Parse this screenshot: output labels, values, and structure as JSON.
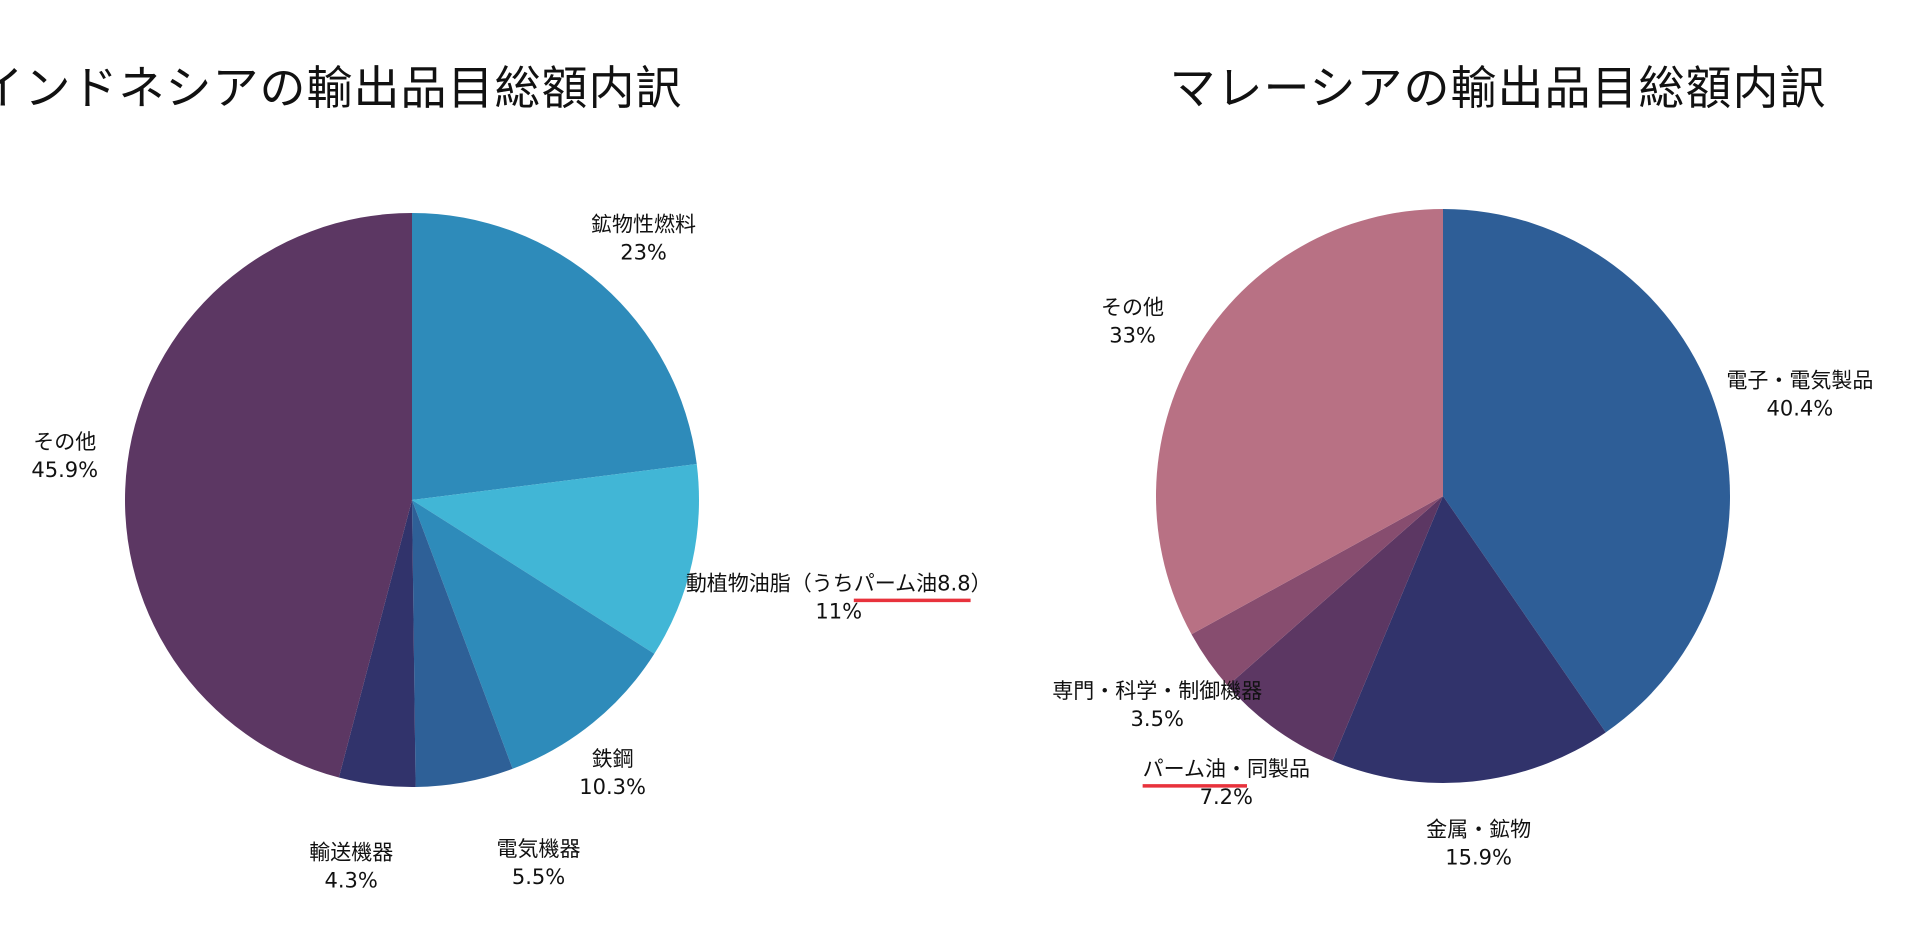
{
  "chart_data": [
    {
      "type": "pie",
      "title": "インドネシアの輸出品目総額内訳",
      "slices": [
        {
          "label": "鉱物性燃料",
          "value": 23,
          "value_text": "23%",
          "color": "#2e8bba"
        },
        {
          "label": "動植物油脂（うちパーム油8.8）",
          "value": 11,
          "value_text": "11%",
          "color": "#41b6d6"
        },
        {
          "label": "鉄鋼",
          "value": 10.3,
          "value_text": "10.3%",
          "color": "#2e8bba"
        },
        {
          "label": "電気機器",
          "value": 5.5,
          "value_text": "5.5%",
          "color": "#2e6097"
        },
        {
          "label": "輸送機器",
          "value": 4.3,
          "value_text": "4.3%",
          "color": "#31336b"
        },
        {
          "label": "その他",
          "value": 45.9,
          "value_text": "45.9%",
          "color": "#5c3763"
        }
      ],
      "start": "top",
      "direction": "clockwise",
      "highlight": {
        "text": "パーム油8.8",
        "color": "#e8323c"
      }
    },
    {
      "type": "pie",
      "title": "マレーシアの輸出品目総額内訳",
      "slices": [
        {
          "label": "電子・電気製品",
          "value": 40.4,
          "value_text": "40.4%",
          "color": "#2e5e97"
        },
        {
          "label": "金属・鉱物",
          "value": 15.9,
          "value_text": "15.9%",
          "color": "#31336b"
        },
        {
          "label": "パーム油・同製品",
          "value": 7.2,
          "value_text": "7.2%",
          "color": "#5c3763"
        },
        {
          "label": "専門・科学・制御機器",
          "value": 3.5,
          "value_text": "3.5%",
          "color": "#874d6f"
        },
        {
          "label": "その他",
          "value": 33,
          "value_text": "33%",
          "color": "#b87184"
        }
      ],
      "start": "top",
      "direction": "clockwise",
      "highlight": {
        "text": "パーム油・",
        "color": "#e8323c"
      }
    }
  ]
}
